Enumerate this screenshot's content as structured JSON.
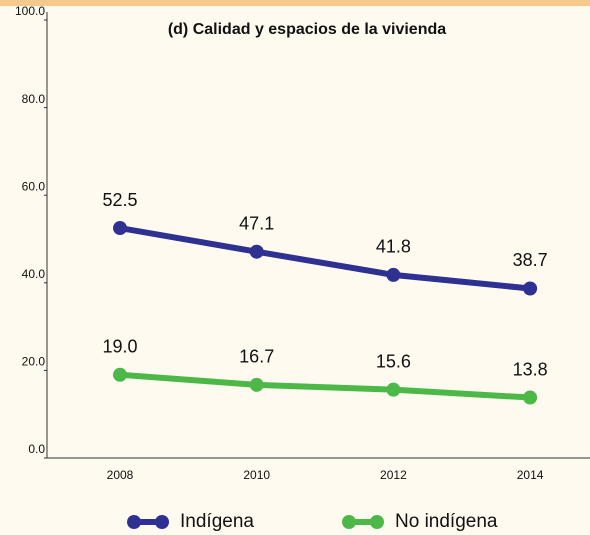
{
  "chart_data": {
    "type": "line",
    "title": "(d) Calidad y espacios de la vivienda",
    "categories": [
      "2008",
      "2010",
      "2012",
      "2014"
    ],
    "series": [
      {
        "name": "Indígena",
        "color": "#2e3192",
        "values": [
          52.5,
          47.1,
          41.8,
          38.7
        ],
        "value_labels": [
          "52.5",
          "47.1",
          "41.8",
          "38.7"
        ]
      },
      {
        "name": "No indígena",
        "color": "#4cb848",
        "values": [
          19.0,
          16.7,
          15.6,
          13.8
        ],
        "value_labels": [
          "19.0",
          "16.7",
          "15.6",
          "13.8"
        ]
      }
    ],
    "ylim": [
      0,
      100
    ],
    "yticks": [
      {
        "value": 0,
        "label": "0.0"
      },
      {
        "value": 20,
        "label": "20.0"
      },
      {
        "value": 40,
        "label": "40.0"
      },
      {
        "value": 60,
        "label": "60.0"
      },
      {
        "value": 80,
        "label": "80.0"
      },
      {
        "value": 100,
        "label": "100.0"
      }
    ],
    "legend": "bottom"
  }
}
